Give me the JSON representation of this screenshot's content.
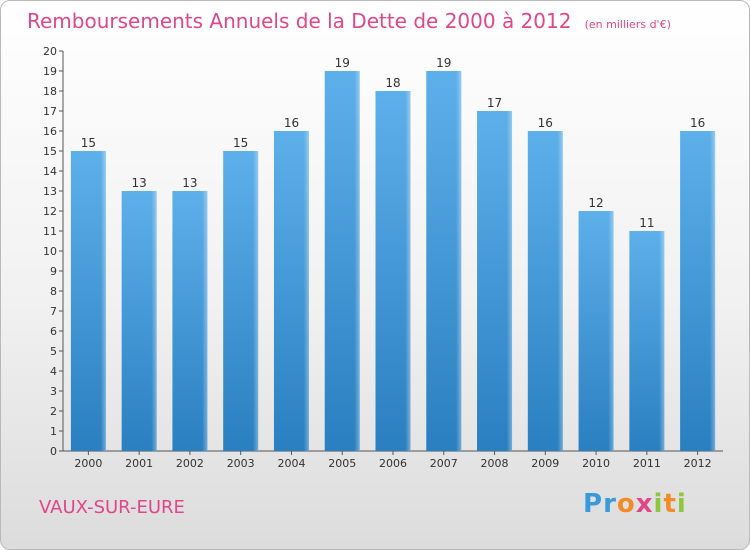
{
  "title": "Remboursements Annuels de la Dette de 2000 à 2012",
  "unit": "(en milliers d'€)",
  "commune": "VAUX-SUR-EURE",
  "logo": "Proxiti",
  "colors": {
    "title": "#e0468a",
    "bar_top": "#5db0ea",
    "bar_bottom": "#2a7fc0",
    "label": "#333333"
  },
  "chart_data": {
    "type": "bar",
    "title": "Remboursements Annuels de la Dette de 2000 à 2012",
    "categories": [
      "2000",
      "2001",
      "2002",
      "2003",
      "2004",
      "2005",
      "2006",
      "2007",
      "2008",
      "2009",
      "2010",
      "2011",
      "2012"
    ],
    "values": [
      15,
      13,
      13,
      15,
      16,
      19,
      18,
      19,
      17,
      16,
      12,
      11,
      16
    ],
    "ylim": [
      0,
      20
    ],
    "yticks": [
      0,
      1,
      2,
      3,
      4,
      5,
      6,
      7,
      8,
      9,
      10,
      11,
      12,
      13,
      14,
      15,
      16,
      17,
      18,
      19,
      20
    ],
    "grid": false,
    "legend": "none"
  }
}
